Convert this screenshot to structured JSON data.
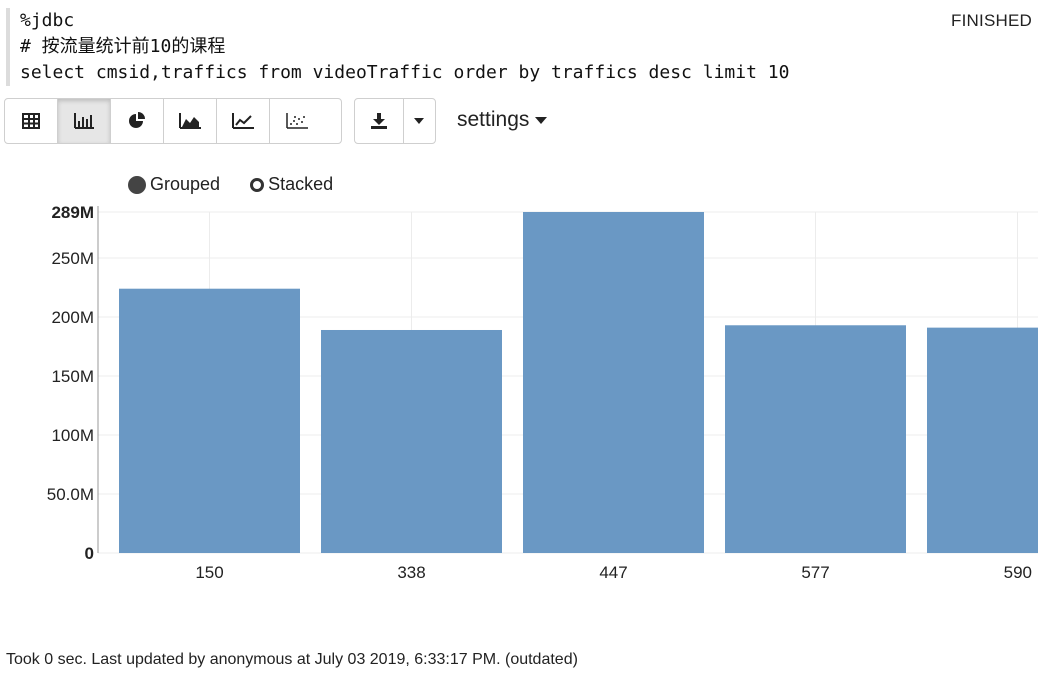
{
  "code": {
    "lines": [
      "%jdbc",
      "# 按流量统计前10的课程",
      "select cmsid,traffics from videoTraffic order by traffics desc limit 10"
    ]
  },
  "status": "FINISHED",
  "toolbar": {
    "viz_buttons": [
      "table-icon",
      "bar-chart-icon",
      "pie-chart-icon",
      "area-chart-icon",
      "line-chart-icon",
      "scatter-chart-icon"
    ],
    "active_viz": "bar-chart-icon",
    "download_icon": "download-icon",
    "settings_label": "settings"
  },
  "legend": {
    "grouped_label": "Grouped",
    "stacked_label": "Stacked",
    "selected": "Grouped"
  },
  "chart_data": {
    "type": "bar",
    "categories": [
      "150",
      "338",
      "447",
      "577",
      "590"
    ],
    "values": [
      224,
      189,
      289,
      193,
      191
    ],
    "value_unit": "M",
    "yticks": [
      0,
      50,
      100,
      150,
      200,
      250,
      289
    ],
    "ytick_labels": [
      "0",
      "50.0M",
      "100M",
      "150M",
      "200M",
      "250M",
      "289M"
    ],
    "ylim": [
      0,
      289
    ],
    "bar_color": "#6a98c4",
    "grid": true,
    "xlabel": "",
    "ylabel": "",
    "title": ""
  },
  "footer": "Took 0 sec. Last updated by anonymous at July 03 2019, 6:33:17 PM. (outdated)"
}
